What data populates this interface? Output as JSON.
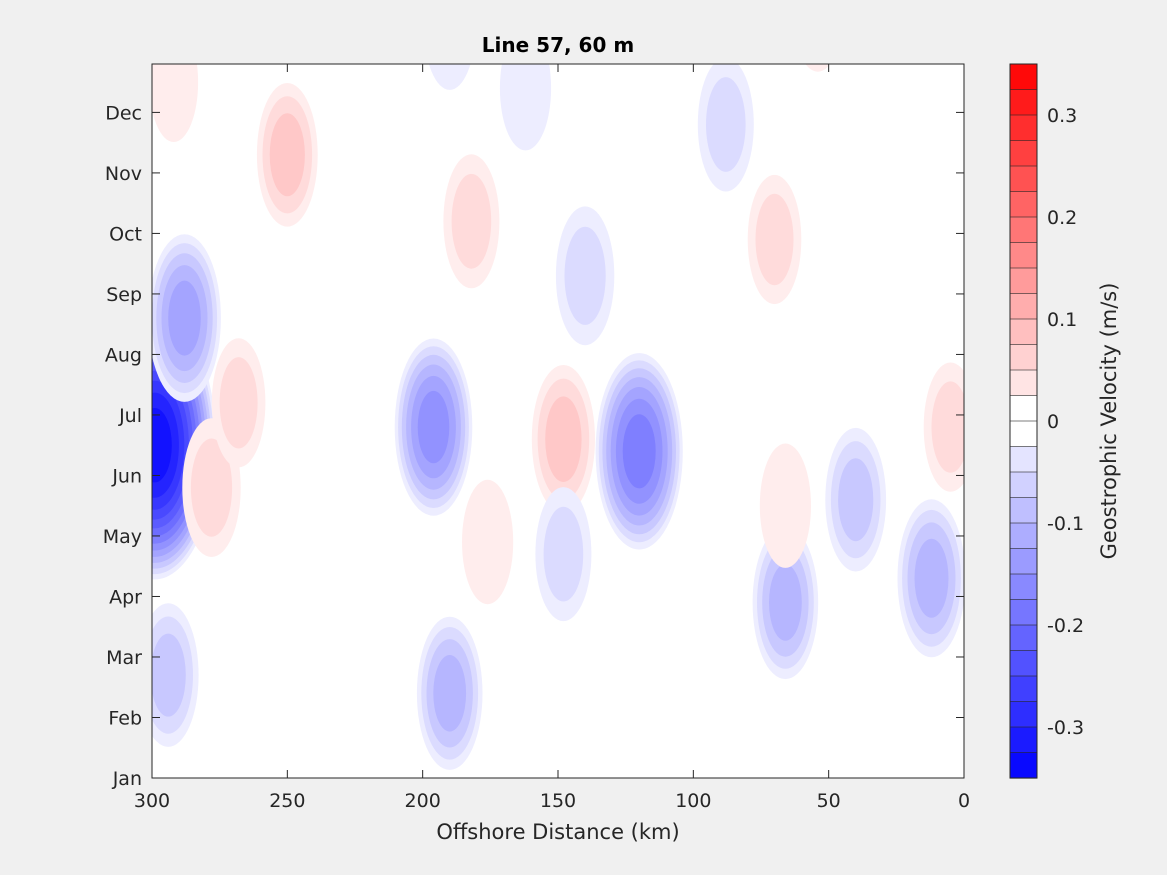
{
  "chart_data": {
    "type": "heatmap",
    "subtype": "filled-contour",
    "title": "Line 57, 60 m",
    "xlabel": "Offshore Distance (km)",
    "ylabel": "",
    "xlim": [
      300,
      0
    ],
    "x_reversed": true,
    "x_ticks": [
      300,
      250,
      200,
      150,
      100,
      50,
      0
    ],
    "y_ticks": [
      "Jan",
      "Feb",
      "Mar",
      "Apr",
      "May",
      "Jun",
      "Jul",
      "Aug",
      "Sep",
      "Oct",
      "Nov",
      "Dec"
    ],
    "colorbar": {
      "label": "Geostrophic Velocity (m/s)",
      "range": [
        -0.35,
        0.35
      ],
      "step": 0.025,
      "ticks": [
        -0.3,
        -0.2,
        -0.1,
        0,
        0.1,
        0.2,
        0.3
      ],
      "tick_labels": [
        "-0.3",
        "-0.2",
        "-0.1",
        "0",
        "0.1",
        "0.2",
        "0.3"
      ],
      "low_color": "#0000ff",
      "mid_color": "#ffffff",
      "high_color": "#ff0000"
    },
    "features": [
      {
        "x": 299,
        "month": 5.5,
        "value": -0.33
      },
      {
        "x": 288,
        "month": 7.6,
        "value": -0.12
      },
      {
        "x": 196,
        "month": 5.8,
        "value": -0.14
      },
      {
        "x": 120,
        "month": 5.4,
        "value": -0.18
      },
      {
        "x": 148,
        "month": 5.6,
        "value": 0.08
      },
      {
        "x": 278,
        "month": 4.8,
        "value": 0.06
      },
      {
        "x": 268,
        "month": 6.2,
        "value": 0.04
      },
      {
        "x": 250,
        "month": 10.3,
        "value": 0.07
      },
      {
        "x": 182,
        "month": 9.2,
        "value": 0.05
      },
      {
        "x": 140,
        "month": 8.3,
        "value": -0.06
      },
      {
        "x": 190,
        "month": 1.4,
        "value": -0.09
      },
      {
        "x": 294,
        "month": 1.7,
        "value": -0.07
      },
      {
        "x": 66,
        "month": 2.9,
        "value": -0.09
      },
      {
        "x": 12,
        "month": 3.3,
        "value": -0.1
      },
      {
        "x": 40,
        "month": 4.6,
        "value": -0.07
      },
      {
        "x": 88,
        "month": 10.8,
        "value": -0.05
      },
      {
        "x": 70,
        "month": 8.9,
        "value": 0.04
      },
      {
        "x": 5,
        "month": 5.8,
        "value": 0.04
      },
      {
        "x": 66,
        "month": 4.5,
        "value": 0.03
      },
      {
        "x": 176,
        "month": 3.9,
        "value": 0.03
      },
      {
        "x": 292,
        "month": 11.5,
        "value": 0.02
      },
      {
        "x": 54,
        "month": 12.7,
        "value": 0.03
      },
      {
        "x": 190,
        "month": 12.4,
        "value": -0.03
      },
      {
        "x": 162,
        "month": 11.4,
        "value": -0.03
      },
      {
        "x": 148,
        "month": 3.7,
        "value": -0.05
      }
    ]
  }
}
